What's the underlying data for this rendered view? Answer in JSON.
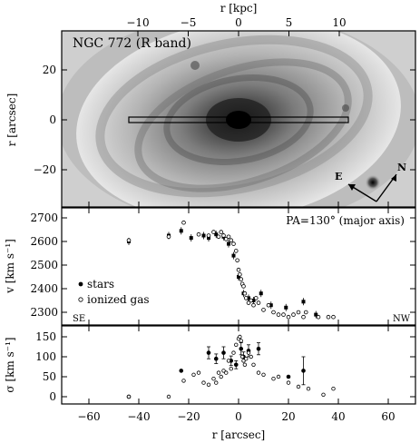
{
  "figure": {
    "top_axis_label": "r [kpc]",
    "top_ticks": [
      {
        "kpc": -10,
        "label": "−10"
      },
      {
        "kpc": -5,
        "label": "−5"
      },
      {
        "kpc": 0,
        "label": "0"
      },
      {
        "kpc": 5,
        "label": "5"
      },
      {
        "kpc": 10,
        "label": "10"
      }
    ],
    "bottom_axis_label": "r [arcsec]",
    "bottom_ticks": [
      {
        "arcsec": -60,
        "label": "−60"
      },
      {
        "arcsec": -40,
        "label": "−40"
      },
      {
        "arcsec": -20,
        "label": "−20"
      },
      {
        "arcsec": 0,
        "label": "0"
      },
      {
        "arcsec": 20,
        "label": "20"
      },
      {
        "arcsec": 40,
        "label": "40"
      },
      {
        "arcsec": 60,
        "label": "60"
      }
    ],
    "panels": {
      "image": {
        "title": "NGC 772 (R band)",
        "ylabel": "r [arcsec]",
        "yticks": [
          "20",
          "0",
          "−20"
        ],
        "compass": {
          "east": "E",
          "north": "N"
        },
        "slit": {
          "from_arcsec": -44,
          "to_arcsec": 44
        }
      },
      "velocity": {
        "ylabel": "v [km s⁻¹]",
        "yticks": [
          "2700",
          "2600",
          "2500",
          "2400",
          "2300"
        ],
        "pa_label": "PA=130° (major axis)",
        "legend": {
          "stars": "stars",
          "gas": "ionized gas"
        },
        "side_left": "SE",
        "side_right": "NW"
      },
      "dispersion": {
        "ylabel": "σ [km s⁻¹]",
        "yticks": [
          "150",
          "100",
          "50",
          "0"
        ]
      }
    }
  },
  "chart_data": [
    {
      "type": "scatter",
      "panel": "velocity",
      "xlabel": "r [arcsec]",
      "ylabel": "v [km s⁻¹]",
      "xlim": [
        -72,
        72
      ],
      "ylim": [
        2260,
        2720
      ],
      "series": [
        {
          "name": "stars",
          "marker": "filled",
          "x": [
            -44,
            -28,
            -23,
            -19,
            -14,
            -12,
            -9,
            -6,
            -4,
            -2,
            0,
            2,
            4,
            6,
            9,
            13,
            19,
            26,
            31
          ],
          "y": [
            2600,
            2625,
            2645,
            2615,
            2625,
            2615,
            2630,
            2620,
            2590,
            2540,
            2450,
            2380,
            2360,
            2350,
            2380,
            2330,
            2320,
            2345,
            2290
          ]
        },
        {
          "name": "ionized gas",
          "marker": "open",
          "x": [
            -44,
            -28,
            -22,
            -16,
            -12,
            -10,
            -8,
            -7,
            -6,
            -5,
            -4,
            -3,
            -2,
            -1,
            -0.5,
            0,
            0.5,
            1,
            1.5,
            2,
            2.5,
            3,
            4,
            5,
            6,
            7,
            8,
            10,
            12,
            14,
            16,
            18,
            20,
            22,
            24,
            26,
            27,
            32,
            36,
            38
          ],
          "y": [
            2605,
            2620,
            2680,
            2630,
            2625,
            2640,
            2620,
            2640,
            2625,
            2610,
            2620,
            2605,
            2590,
            2560,
            2520,
            2480,
            2460,
            2440,
            2420,
            2410,
            2380,
            2360,
            2340,
            2350,
            2330,
            2360,
            2340,
            2310,
            2330,
            2300,
            2290,
            2290,
            2280,
            2290,
            2300,
            2280,
            2300,
            2280,
            2280,
            2280
          ]
        }
      ]
    },
    {
      "type": "scatter",
      "panel": "dispersion",
      "xlabel": "r [arcsec]",
      "ylabel": "σ [km s⁻¹]",
      "xlim": [
        -72,
        72
      ],
      "ylim": [
        -10,
        160
      ],
      "series": [
        {
          "name": "stars",
          "marker": "filled",
          "x": [
            -44,
            -23,
            -12,
            -9,
            -6,
            -3,
            -1,
            1,
            2,
            4,
            8,
            20,
            26
          ],
          "y": [
            0,
            65,
            110,
            95,
            110,
            90,
            80,
            120,
            100,
            115,
            120,
            50,
            65
          ],
          "err": [
            0,
            0,
            15,
            12,
            15,
            12,
            10,
            15,
            12,
            15,
            15,
            0,
            35
          ]
        },
        {
          "name": "ionized gas",
          "marker": "open",
          "x": [
            -44,
            -28,
            -22,
            -18,
            -16,
            -14,
            -12,
            -10,
            -9,
            -8,
            -7,
            -6,
            -5,
            -4,
            -3,
            -2,
            -1,
            0,
            0.5,
            1,
            1.5,
            2,
            2.5,
            3,
            4,
            5,
            6,
            8,
            10,
            14,
            16,
            20,
            24,
            28,
            34,
            38
          ],
          "y": [
            0,
            0,
            40,
            55,
            60,
            35,
            30,
            45,
            35,
            60,
            50,
            65,
            60,
            90,
            70,
            110,
            130,
            145,
            150,
            140,
            100,
            90,
            80,
            95,
            110,
            100,
            80,
            60,
            55,
            45,
            50,
            35,
            25,
            20,
            5,
            20
          ]
        }
      ]
    }
  ]
}
